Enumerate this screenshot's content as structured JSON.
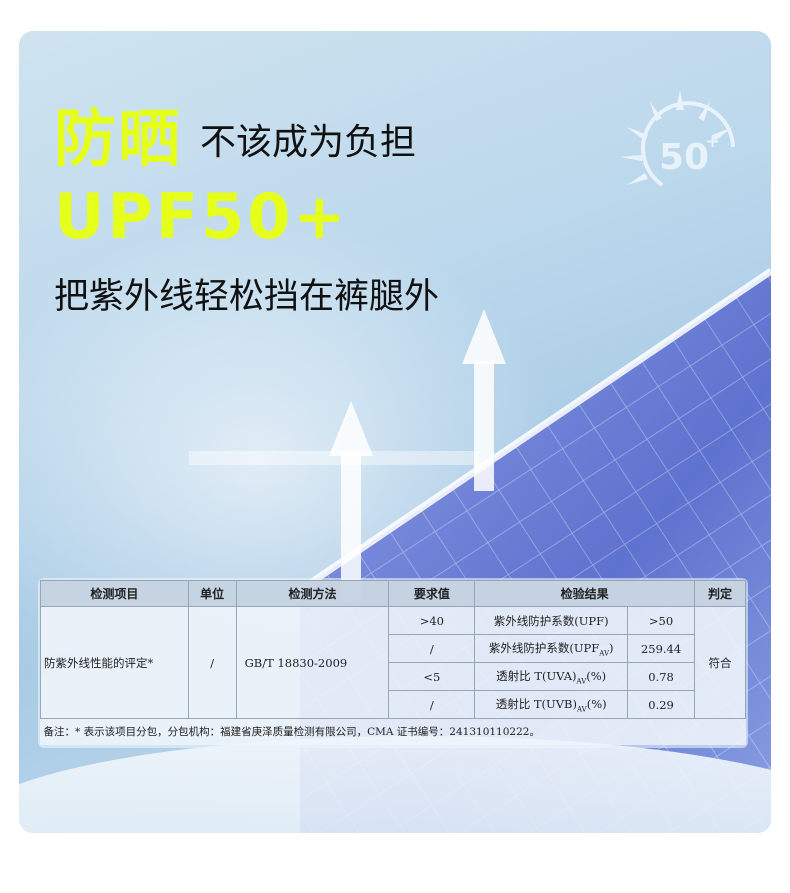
{
  "headline": {
    "highlight": "防晒",
    "rest": "不该成为负担",
    "upf": "UPF50+",
    "sub": "把紫外线轻松挡在裤腿外"
  },
  "badge": {
    "icon": "sun-icon",
    "text": "50",
    "plus": "+"
  },
  "colors": {
    "accent": "#e6ff1a",
    "text": "#111111"
  },
  "table": {
    "headers": [
      "检测项目",
      "单位",
      "检测方法",
      "要求值",
      "检验结果",
      "判定"
    ],
    "item": "防紫外线性能的评定*",
    "unit": "/",
    "method": "GB/T 18830-2009",
    "verdict": "符合",
    "rows": [
      {
        "req": ">40",
        "name": "紫外线防护系数(UPF)",
        "value": ">50"
      },
      {
        "req": "/",
        "name": "紫外线防护系数(UPF",
        "sub": "AV",
        "suffix": ")",
        "value": "259.44"
      },
      {
        "req": "<5",
        "name": "透射比 T(UVA)",
        "sub": "AV",
        "suffix": "(%)",
        "value": "0.78"
      },
      {
        "req": "/",
        "name": "透射比 T(UVB)",
        "sub": "AV",
        "suffix": "(%)",
        "value": "0.29"
      }
    ],
    "note": "备注：* 表示该项目分包，分包机构：福建省庚泽质量检测有限公司，CMA 证书编号：241310110222。"
  }
}
